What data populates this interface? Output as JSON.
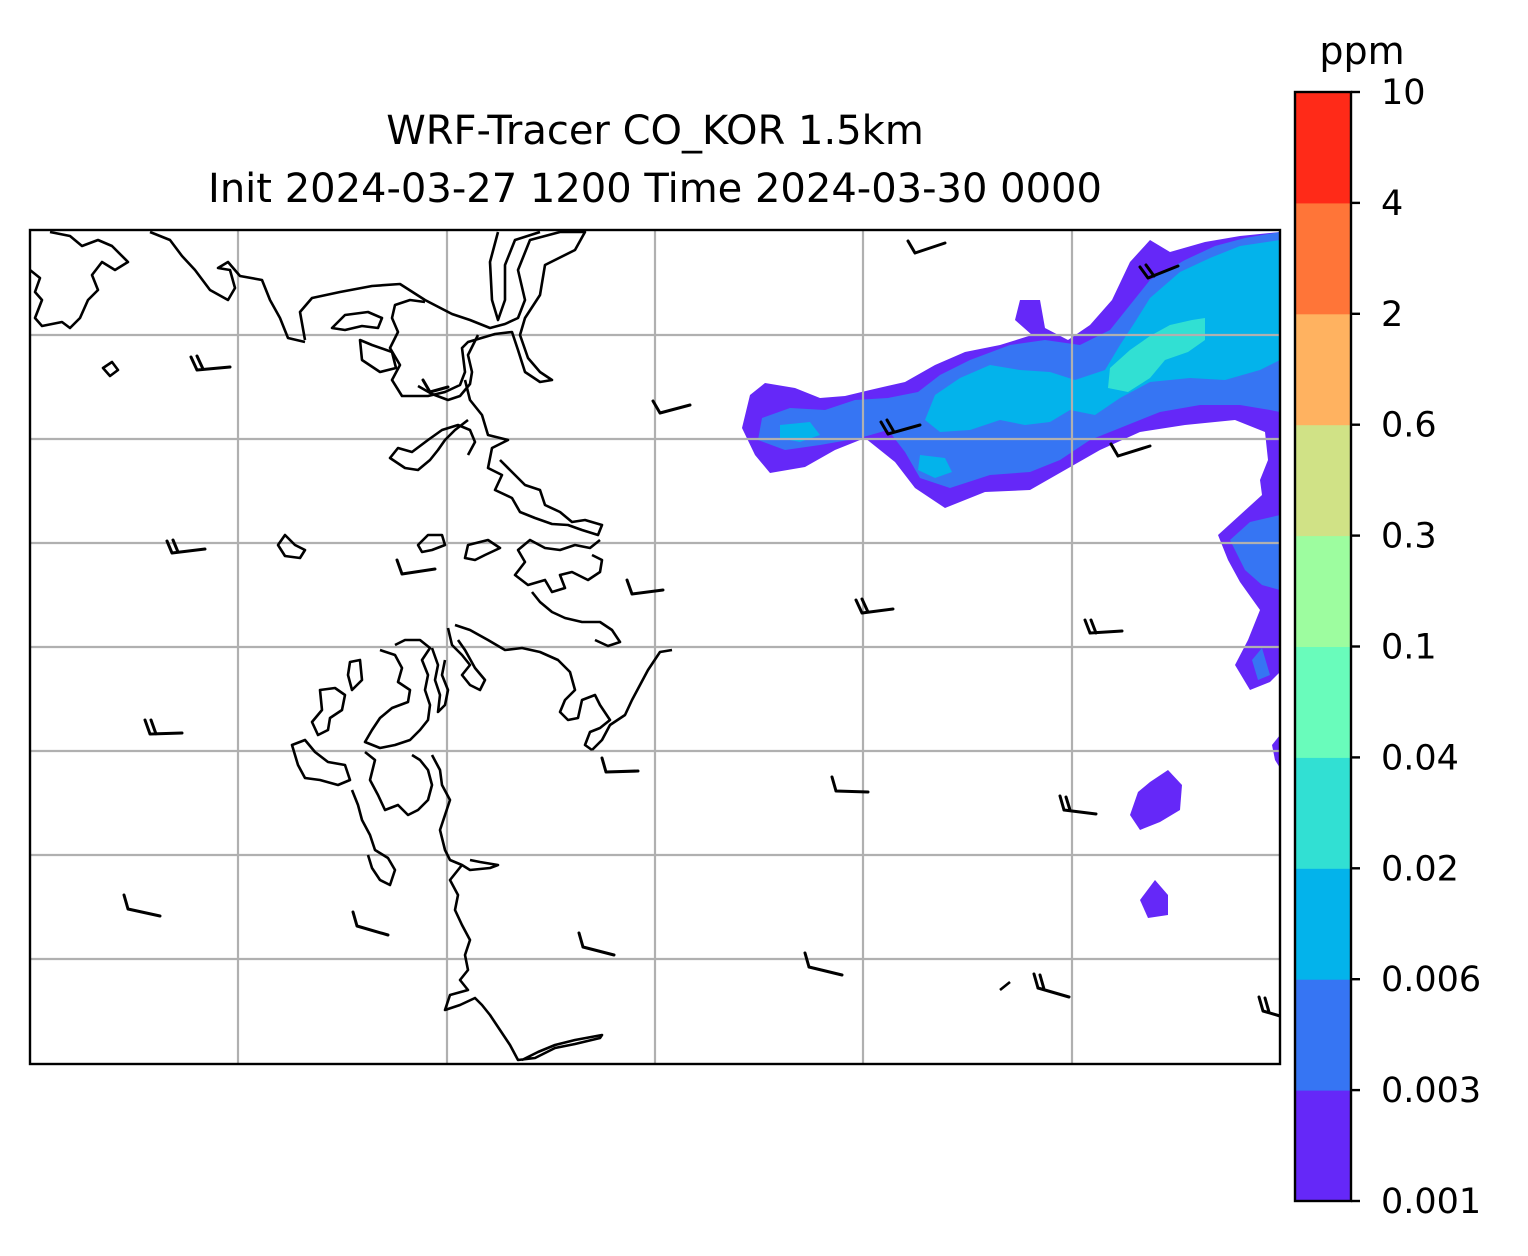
{
  "title": {
    "line1": "WRF-Tracer CO_KOR 1.5km",
    "line2": "Init 2024-03-27 1200 Time 2024-03-30 0000"
  },
  "colorbar": {
    "unit": "ppm",
    "levels": [
      "0.001",
      "0.003",
      "0.006",
      "0.02",
      "0.04",
      "0.1",
      "0.3",
      "0.6",
      "2",
      "4",
      "10"
    ],
    "colors": [
      "#6528f8",
      "#3675f3",
      "#03b3eb",
      "#31e0d3",
      "#69fcbb",
      "#9dfd9f",
      "#d0e286",
      "#ffb260",
      "#ff7538",
      "#ff2a18"
    ]
  },
  "map": {
    "gridlines": true,
    "coastline_color": "#000000",
    "grid_color": "#b0b0b0",
    "wind_barb_count": 20
  }
}
